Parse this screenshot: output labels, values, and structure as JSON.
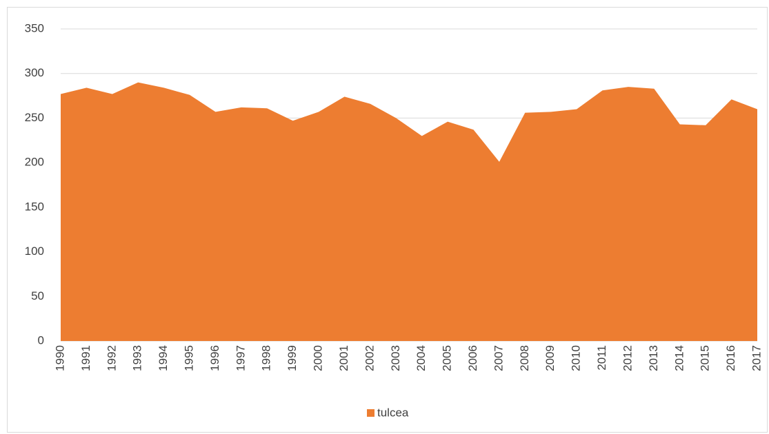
{
  "chart_data": {
    "type": "area",
    "categories": [
      "1990",
      "1991",
      "1992",
      "1993",
      "1994",
      "1995",
      "1996",
      "1997",
      "1998",
      "1999",
      "2000",
      "2001",
      "2002",
      "2003",
      "2004",
      "2005",
      "2006",
      "2007",
      "2008",
      "2009",
      "2010",
      "2011",
      "2012",
      "2013",
      "2014",
      "2015",
      "2016",
      "2017"
    ],
    "series": [
      {
        "name": "tulcea",
        "color": "#ed7d31",
        "values": [
          277,
          284,
          277,
          290,
          284,
          276,
          257,
          262,
          261,
          247,
          257,
          274,
          266,
          250,
          230,
          246,
          237,
          201,
          256,
          257,
          260,
          281,
          285,
          283,
          243,
          242,
          271,
          260
        ]
      }
    ],
    "ylim": [
      0,
      350
    ],
    "yticks": [
      0,
      50,
      100,
      150,
      200,
      250,
      300,
      350
    ],
    "grid": true,
    "legend": "bottom"
  }
}
